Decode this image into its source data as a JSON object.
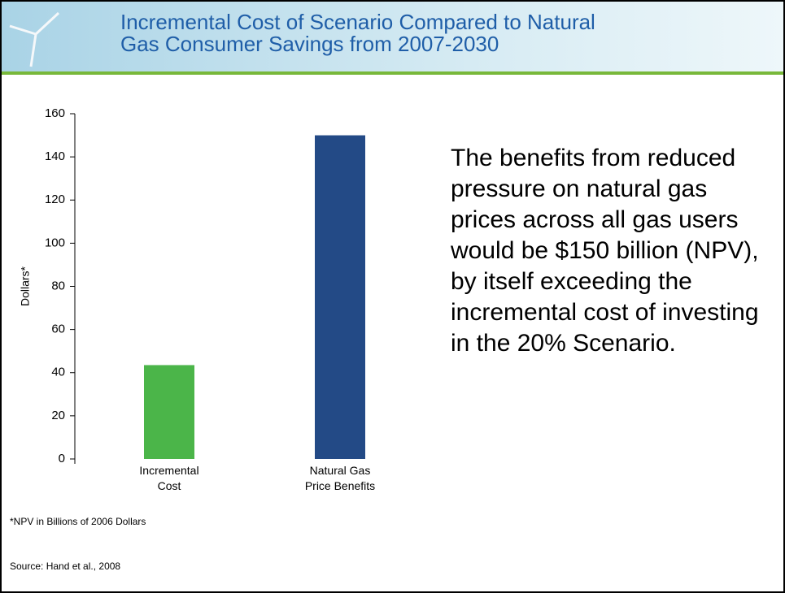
{
  "slide": {
    "title": "Incremental Cost of Scenario Compared to Natural\nGas Consumer Savings from 2007-2030",
    "body": "The benefits from reduced pressure on natural gas prices across all gas users would be $150 billion (NPV), by itself exceeding the incremental cost of investing in the 20% Scenario.",
    "footnote": "*NPV in Billions of 2006 Dollars",
    "source": "Source: Hand et al., 2008"
  },
  "chart_data": {
    "type": "bar",
    "y_label": "Dollars*",
    "categories": [
      "Incremental\nCost",
      "Natural Gas\nPrice Benefits"
    ],
    "values": [
      43.5,
      150
    ],
    "colors": [
      "#4bb549",
      "#234a86"
    ],
    "ylim": [
      0,
      160
    ],
    "yticks": [
      0,
      20,
      40,
      60,
      80,
      100,
      120,
      140,
      160
    ]
  }
}
